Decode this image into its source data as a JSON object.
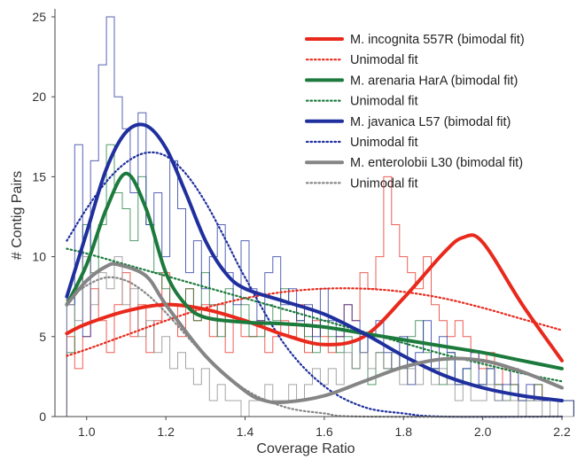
{
  "chart_data": {
    "type": "line",
    "xlabel": "Coverage Ratio",
    "ylabel": "# Contig Pairs",
    "xlim": [
      0.92,
      2.2
    ],
    "ylim": [
      0,
      25.5
    ],
    "x_ticks": [
      "1.0",
      "1.2",
      "1.4",
      "1.6",
      "1.8",
      "2.0",
      "2.2"
    ],
    "y_ticks": [
      "0",
      "5",
      "10",
      "15",
      "20",
      "25"
    ],
    "grid": false,
    "legend_position": "top-right",
    "histogram_bin_width": 0.02,
    "histogram_x_start": 0.95,
    "series": [
      {
        "name": "M. incognita 557R (bimodal fit)",
        "unimodal_name": "Unimodal fit",
        "color": "#e8291c",
        "bimodal": [
          [
            0.95,
            5.2
          ],
          [
            1.0,
            5.8
          ],
          [
            1.1,
            6.6
          ],
          [
            1.2,
            7.0
          ],
          [
            1.3,
            6.7
          ],
          [
            1.4,
            6.0
          ],
          [
            1.5,
            5.1
          ],
          [
            1.6,
            4.5
          ],
          [
            1.7,
            5.0
          ],
          [
            1.8,
            7.4
          ],
          [
            1.9,
            10.2
          ],
          [
            1.95,
            11.2
          ],
          [
            2.0,
            10.9
          ],
          [
            2.1,
            7.0
          ],
          [
            2.2,
            3.5
          ]
        ],
        "unimodal": [
          [
            0.95,
            3.8
          ],
          [
            1.0,
            4.2
          ],
          [
            1.1,
            5.1
          ],
          [
            1.2,
            6.0
          ],
          [
            1.3,
            6.8
          ],
          [
            1.4,
            7.4
          ],
          [
            1.5,
            7.8
          ],
          [
            1.6,
            8.0
          ],
          [
            1.7,
            8.0
          ],
          [
            1.8,
            7.8
          ],
          [
            1.9,
            7.4
          ],
          [
            2.0,
            6.8
          ],
          [
            2.1,
            6.1
          ],
          [
            2.2,
            5.4
          ]
        ],
        "histogram": [
          5,
          3,
          5,
          8,
          6,
          4,
          7,
          9,
          5,
          7,
          4,
          6,
          9,
          7,
          5,
          8,
          6,
          7,
          5,
          7,
          4,
          6,
          5,
          5,
          6,
          4,
          5,
          6,
          5,
          7,
          4,
          6,
          5,
          4,
          5,
          7,
          6,
          9,
          8,
          10,
          15,
          12,
          10,
          9,
          8,
          10,
          7,
          6,
          5,
          6,
          5,
          4,
          3,
          4,
          2,
          3,
          2,
          1,
          1,
          2,
          1,
          1,
          1,
          1
        ]
      },
      {
        "name": "M. arenaria HarA (bimodal fit)",
        "unimodal_name": "Unimodal fit",
        "color": "#1c7a3c",
        "bimodal": [
          [
            0.95,
            7.0
          ],
          [
            1.0,
            9.5
          ],
          [
            1.05,
            13.0
          ],
          [
            1.1,
            15.2
          ],
          [
            1.15,
            13.0
          ],
          [
            1.2,
            9.0
          ],
          [
            1.25,
            7.0
          ],
          [
            1.3,
            6.2
          ],
          [
            1.4,
            5.9
          ],
          [
            1.5,
            5.8
          ],
          [
            1.6,
            5.6
          ],
          [
            1.7,
            5.2
          ],
          [
            1.8,
            4.8
          ],
          [
            1.9,
            4.4
          ],
          [
            2.0,
            4.0
          ],
          [
            2.1,
            3.5
          ],
          [
            2.2,
            3.0
          ]
        ],
        "unimodal": [
          [
            0.95,
            10.5
          ],
          [
            1.0,
            10.2
          ],
          [
            1.1,
            9.5
          ],
          [
            1.2,
            8.8
          ],
          [
            1.3,
            8.1
          ],
          [
            1.4,
            7.4
          ],
          [
            1.5,
            6.7
          ],
          [
            1.6,
            6.0
          ],
          [
            1.7,
            5.3
          ],
          [
            1.8,
            4.6
          ],
          [
            1.9,
            3.9
          ],
          [
            2.0,
            3.3
          ],
          [
            2.1,
            2.7
          ],
          [
            2.2,
            2.2
          ]
        ],
        "histogram": [
          4,
          8,
          12,
          9,
          12,
          17,
          14,
          13,
          11,
          15,
          12,
          9,
          8,
          7,
          7,
          8,
          6,
          9,
          7,
          5,
          8,
          6,
          7,
          5,
          5,
          7,
          6,
          8,
          7,
          6,
          5,
          4,
          6,
          5,
          4,
          5,
          3,
          5,
          2,
          4,
          3,
          4,
          3,
          5,
          6,
          4,
          3,
          2,
          4,
          2,
          3,
          2,
          2,
          3,
          2,
          1,
          2,
          1,
          1,
          2,
          1,
          1,
          1,
          1
        ]
      },
      {
        "name": "M. javanica L57 (bimodal fit)",
        "unimodal_name": "Unimodal fit",
        "color": "#1f2f9e",
        "bimodal": [
          [
            0.95,
            7.5
          ],
          [
            1.0,
            11.5
          ],
          [
            1.05,
            15.5
          ],
          [
            1.1,
            17.8
          ],
          [
            1.15,
            18.2
          ],
          [
            1.2,
            16.8
          ],
          [
            1.25,
            14.0
          ],
          [
            1.3,
            11.0
          ],
          [
            1.35,
            9.0
          ],
          [
            1.4,
            8.0
          ],
          [
            1.5,
            7.2
          ],
          [
            1.6,
            6.4
          ],
          [
            1.7,
            5.2
          ],
          [
            1.8,
            3.8
          ],
          [
            1.9,
            2.6
          ],
          [
            2.0,
            1.8
          ],
          [
            2.1,
            1.3
          ],
          [
            2.2,
            1.0
          ]
        ],
        "unimodal": [
          [
            0.95,
            11.0
          ],
          [
            1.0,
            13.0
          ],
          [
            1.05,
            14.7
          ],
          [
            1.1,
            15.9
          ],
          [
            1.15,
            16.5
          ],
          [
            1.2,
            16.3
          ],
          [
            1.25,
            15.2
          ],
          [
            1.3,
            13.4
          ],
          [
            1.35,
            11.1
          ],
          [
            1.4,
            8.7
          ],
          [
            1.5,
            4.5
          ],
          [
            1.6,
            1.9
          ],
          [
            1.7,
            0.6
          ],
          [
            1.8,
            0.2
          ],
          [
            1.9,
            0.0
          ],
          [
            2.2,
            0.0
          ]
        ],
        "histogram": [
          7,
          17,
          5,
          16,
          22,
          25,
          20,
          18,
          14,
          19,
          12,
          14,
          10,
          16,
          13,
          9,
          11,
          8,
          10,
          12,
          9,
          7,
          11,
          8,
          6,
          9,
          10,
          7,
          8,
          6,
          7,
          5,
          8,
          6,
          5,
          7,
          6,
          4,
          5,
          6,
          4,
          3,
          5,
          2,
          4,
          6,
          3,
          5,
          4,
          2,
          3,
          4,
          2,
          3,
          1,
          2,
          3,
          1,
          2,
          1,
          1,
          1,
          1,
          1
        ]
      },
      {
        "name": "M. enterolobii L30 (bimodal fit)",
        "unimodal_name": "Unimodal fit",
        "color": "#858585",
        "bimodal": [
          [
            0.95,
            7.0
          ],
          [
            1.0,
            8.5
          ],
          [
            1.05,
            9.4
          ],
          [
            1.08,
            9.5
          ],
          [
            1.15,
            8.8
          ],
          [
            1.2,
            7.0
          ],
          [
            1.3,
            3.8
          ],
          [
            1.4,
            1.6
          ],
          [
            1.45,
            1.0
          ],
          [
            1.5,
            0.9
          ],
          [
            1.6,
            1.3
          ],
          [
            1.7,
            2.2
          ],
          [
            1.8,
            3.1
          ],
          [
            1.9,
            3.6
          ],
          [
            2.0,
            3.5
          ],
          [
            2.1,
            2.8
          ],
          [
            2.2,
            1.8
          ]
        ],
        "unimodal": [
          [
            0.95,
            7.3
          ],
          [
            1.0,
            8.2
          ],
          [
            1.05,
            8.7
          ],
          [
            1.1,
            8.5
          ],
          [
            1.15,
            7.7
          ],
          [
            1.2,
            6.5
          ],
          [
            1.3,
            3.8
          ],
          [
            1.4,
            1.7
          ],
          [
            1.5,
            0.6
          ],
          [
            1.6,
            0.2
          ],
          [
            1.7,
            0.0
          ],
          [
            2.2,
            0.0
          ]
        ],
        "histogram": [
          7,
          6,
          10,
          7,
          9,
          8,
          10,
          7,
          8,
          5,
          6,
          4,
          5,
          3,
          4,
          3,
          2,
          3,
          1,
          2,
          1,
          1,
          0,
          1,
          1,
          2,
          1,
          1,
          2,
          1,
          2,
          3,
          2,
          3,
          2,
          4,
          3,
          4,
          3,
          4,
          3,
          4,
          2,
          3,
          2,
          3,
          2,
          3,
          2,
          1,
          2,
          1,
          1,
          2,
          1,
          1,
          1,
          0,
          1,
          1,
          0,
          1,
          0,
          0
        ]
      }
    ]
  }
}
